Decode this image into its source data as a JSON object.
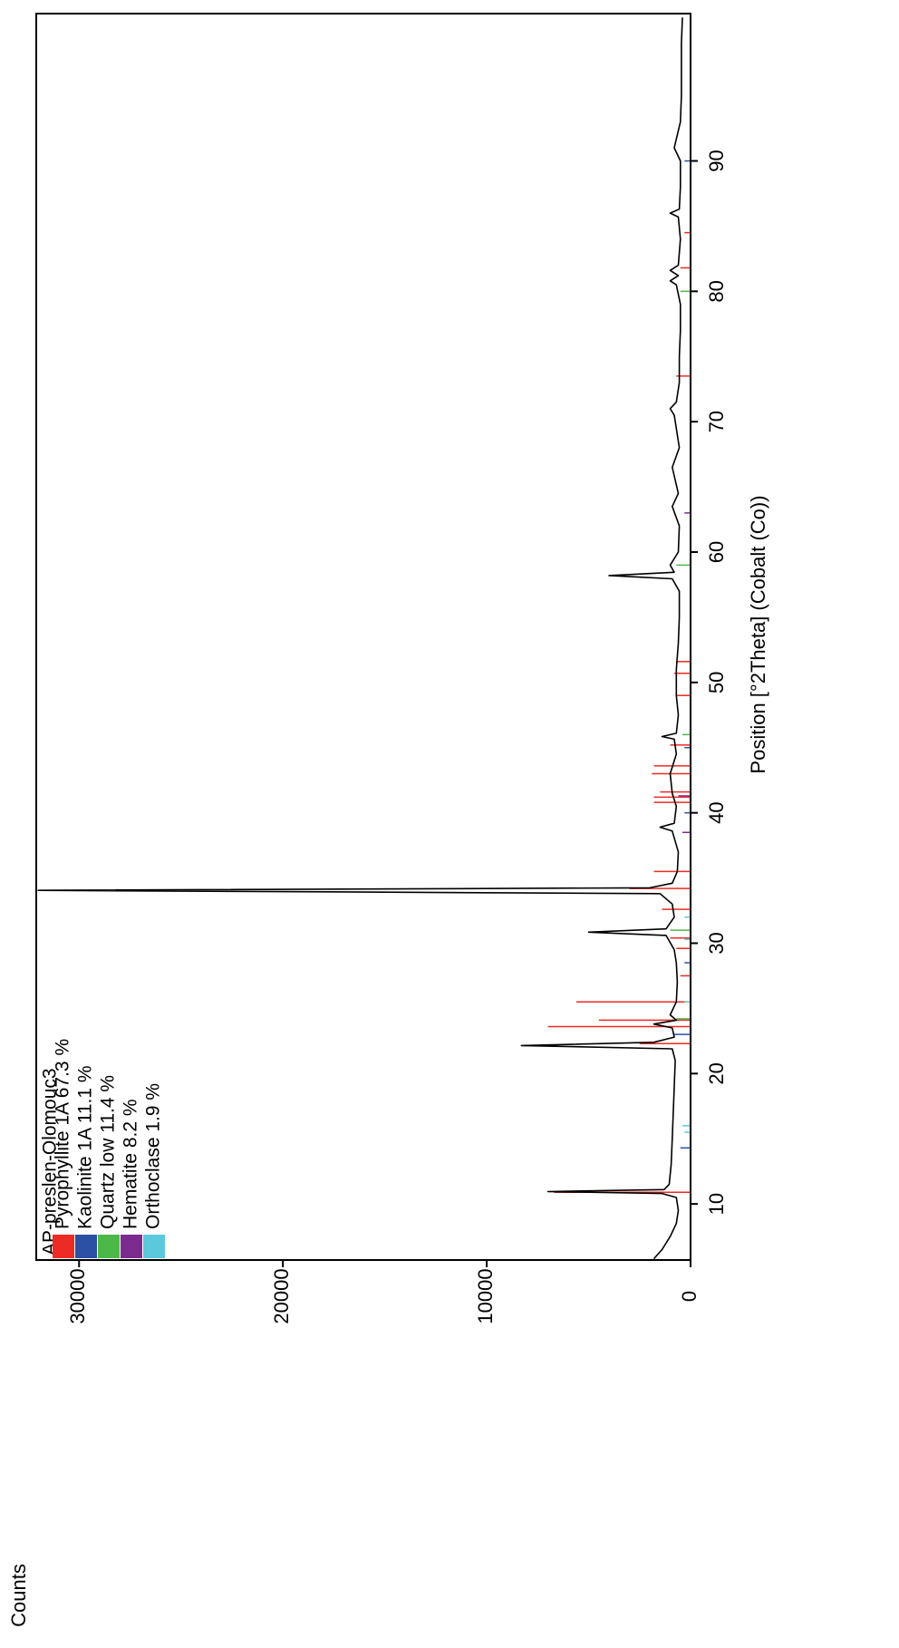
{
  "chart_data": {
    "type": "line",
    "y_label": "Counts",
    "x_label": "Position [°2Theta] (Cobalt (Co))",
    "xlim": [
      5.7,
      101.3
    ],
    "xticks": [
      10,
      20,
      30,
      40,
      50,
      60,
      70,
      80,
      90
    ],
    "ylim": [
      0,
      32100
    ],
    "yticks": [
      0,
      10000,
      20000,
      30000
    ],
    "legend_title": "AP-preslen-Olomouc3",
    "series": [
      {
        "color": "#000000",
        "x": [
          5.8,
          6.5,
          7.5,
          8.5,
          9.5,
          10.5,
          10.8,
          10.95,
          11.1,
          11.5,
          13,
          15,
          17,
          19,
          21,
          21.9,
          22.15,
          22.4,
          22.8,
          23.5,
          23.8,
          24.1,
          24.5,
          25.5,
          27,
          28.5,
          29.5,
          30.6,
          30.85,
          31.1,
          32,
          33,
          33.8,
          34.05,
          34.25,
          34.6,
          35.5,
          37,
          38.6,
          38.9,
          39.2,
          40.5,
          41.5,
          43,
          44.5,
          45.65,
          45.85,
          46.1,
          47.5,
          49,
          51,
          53,
          55,
          57,
          57.95,
          58.2,
          58.45,
          59,
          60,
          62,
          63.5,
          64.5,
          66.5,
          68,
          70.5,
          71,
          71.5,
          73,
          75,
          77,
          79,
          80.5,
          80.8,
          81.2,
          81.6,
          82,
          84,
          85.7,
          86,
          86.3,
          88,
          90,
          91,
          93,
          95,
          97,
          99,
          101
        ],
        "values": [
          1800,
          1400,
          1000,
          700,
          600,
          700,
          1400,
          7000,
          1300,
          1050,
          950,
          900,
          850,
          800,
          750,
          900,
          8300,
          1800,
          800,
          900,
          1800,
          700,
          1000,
          700,
          650,
          700,
          800,
          1200,
          5000,
          1200,
          800,
          900,
          1500,
          32000,
          2000,
          900,
          650,
          600,
          900,
          1500,
          800,
          700,
          900,
          1000,
          700,
          800,
          1400,
          700,
          600,
          700,
          700,
          600,
          550,
          550,
          900,
          4000,
          800,
          1000,
          600,
          550,
          900,
          600,
          900,
          550,
          800,
          1000,
          700,
          550,
          550,
          500,
          500,
          700,
          1000,
          600,
          1000,
          600,
          500,
          600,
          1000,
          550,
          500,
          500,
          800,
          500,
          450,
          450,
          450,
          400
        ]
      }
    ],
    "references": [
      {
        "name": "Pyrophyllite 1A 67.3 %",
        "color": "#ee2a24",
        "positions": [
          10.9,
          22.3,
          23.6,
          24.1,
          25.5,
          27.5,
          29.6,
          30.4,
          32.6,
          34.2,
          35.5,
          38.5,
          40.8,
          41.2,
          41.6,
          43,
          43.6,
          45.2,
          49,
          50.7,
          51.6,
          73.5,
          81.8,
          84.5
        ],
        "values": [
          6700,
          2500,
          7000,
          4500,
          5600,
          500,
          700,
          1000,
          1400,
          3000,
          1800,
          400,
          1800,
          1800,
          1500,
          1900,
          1800,
          1000,
          700,
          800,
          700,
          700,
          500,
          300
        ]
      },
      {
        "name": "Kaolinite 1A 11.1 %",
        "color": "#2b4fa3",
        "positions": [
          14.3,
          23,
          28.5,
          40,
          45,
          90
        ],
        "values": [
          500,
          800,
          300,
          300,
          300,
          300
        ]
      },
      {
        "name": "Quartz low 11.4 %",
        "color": "#4cb848",
        "positions": [
          24.2,
          31,
          46,
          59,
          80
        ],
        "values": [
          700,
          1000,
          400,
          700,
          500
        ]
      },
      {
        "name": "Hematite 8.2 %",
        "color": "#7b2b90",
        "positions": [
          38.5,
          41.3,
          63
        ],
        "values": [
          400,
          600,
          300
        ]
      },
      {
        "name": "Orthoclase 1.9 %",
        "color": "#5bc8dc",
        "positions": [
          15.5,
          16,
          25.5,
          30.3,
          32
        ],
        "values": [
          300,
          400,
          300,
          300,
          300
        ]
      }
    ]
  }
}
